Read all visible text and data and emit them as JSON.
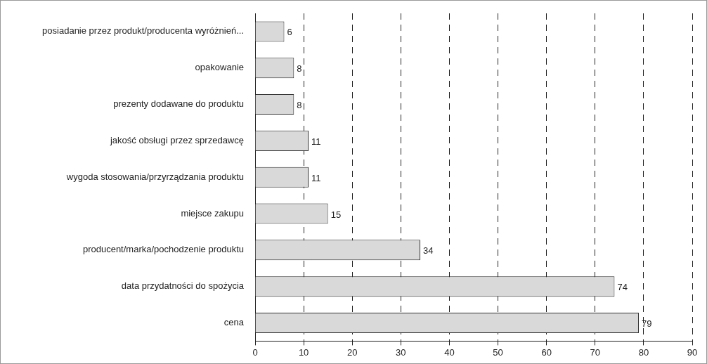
{
  "chart_data": {
    "type": "bar",
    "orientation": "horizontal",
    "categories": [
      "posiadanie przez produkt/producenta wyróżnień...",
      "opakowanie",
      "prezenty dodawane do produktu",
      "jakość obsługi przez sprzedawcę",
      "wygoda stosowania/przyrządzania produktu",
      "miejsce zakupu",
      "producent/marka/pochodzenie produktu",
      "data przydatności do spożycia",
      "cena"
    ],
    "values": [
      6,
      8,
      8,
      11,
      11,
      15,
      34,
      74,
      79
    ],
    "color": "#d9d9d9",
    "xlim": [
      0,
      90
    ],
    "xticks": [
      0,
      10,
      20,
      30,
      40,
      50,
      60,
      70,
      80,
      90
    ],
    "grid": "x",
    "legend": false,
    "data_labels": true
  }
}
